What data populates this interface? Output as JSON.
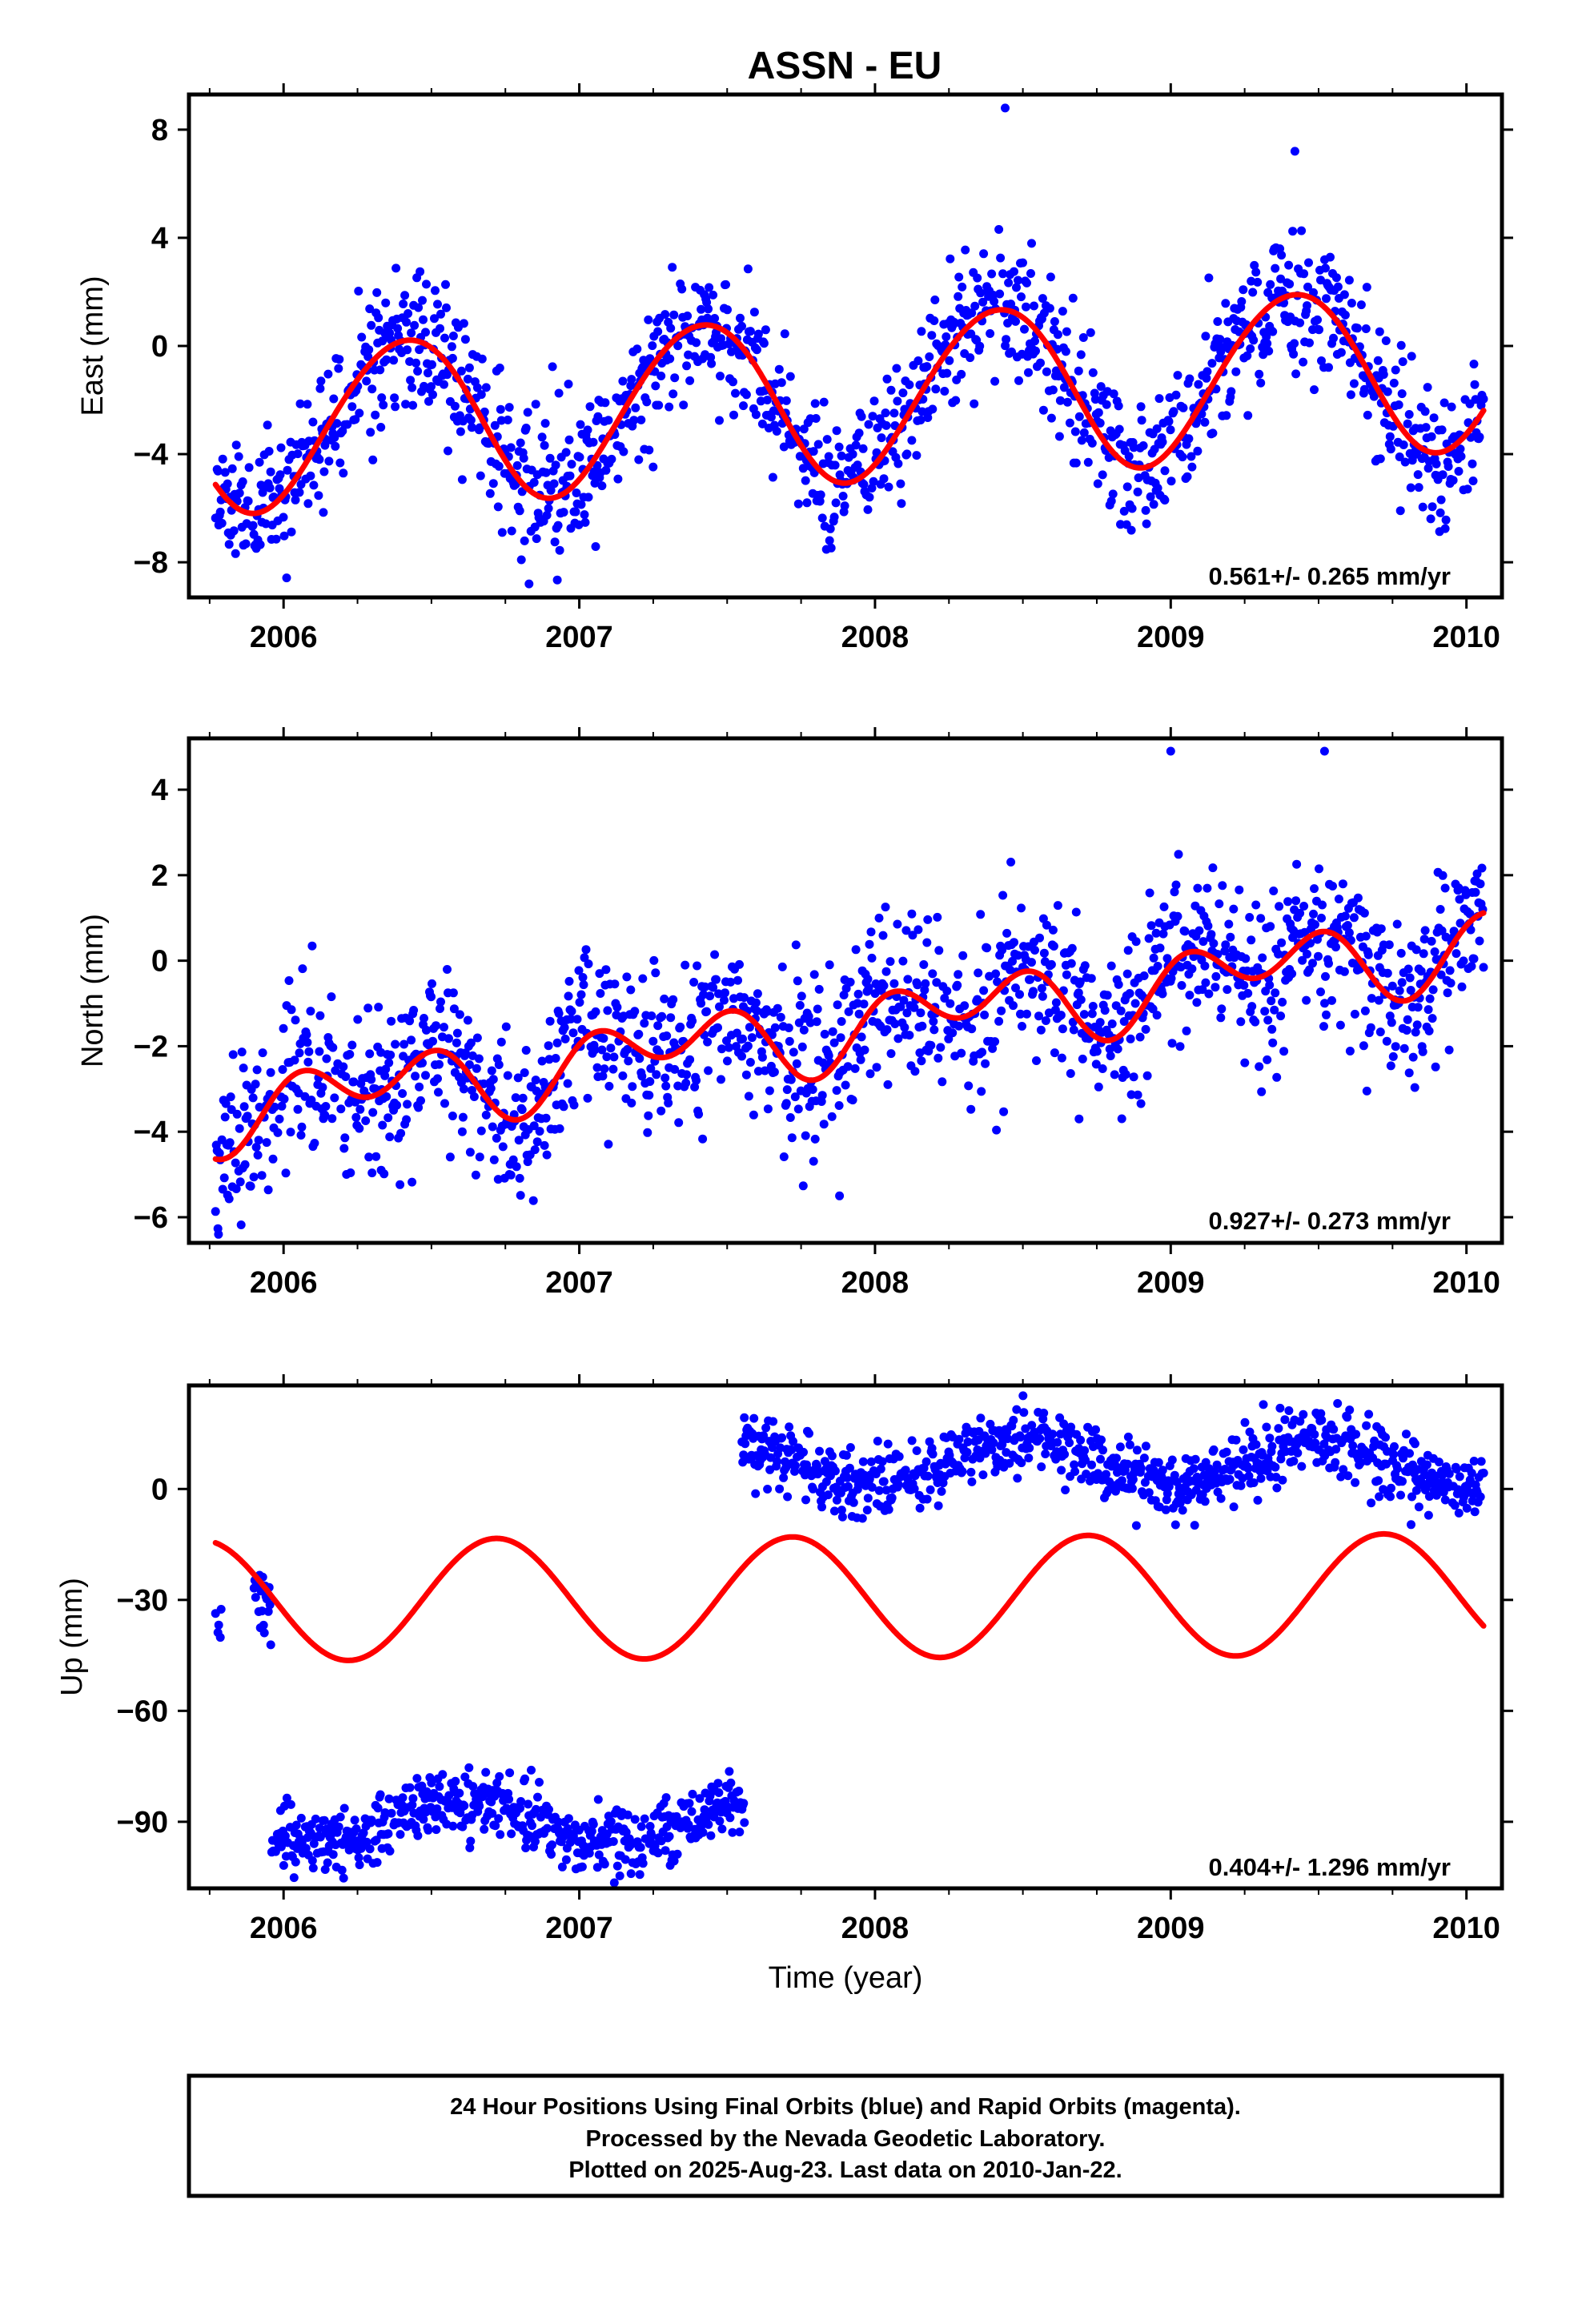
{
  "title": "ASSN - EU",
  "chart_data": [
    {
      "type": "scatter",
      "ylabel": "East (mm)",
      "xlim": [
        2005.68,
        2010.12
      ],
      "ylim": [
        -9.3,
        9.3
      ],
      "xticks": [
        2006,
        2007,
        2008,
        2009,
        2010
      ],
      "yticks": [
        -8,
        -4,
        0,
        4,
        8
      ],
      "rate_label": "0.561+/- 0.265 mm/yr",
      "model": {
        "name": "fit",
        "color": "#ff0000",
        "intercept": -1.85,
        "trend": 0.561,
        "annual_amp": 3.05,
        "annual_peak": 2006.41,
        "semiannual_amp": 0.15,
        "semiannual_peak": 2006.1
      },
      "observations": {
        "color": "#0000ff",
        "scatter": 1.3,
        "start": 2005.77,
        "end": 2010.06,
        "step": 0.0027,
        "seed": 11,
        "outliers": [
          [
            2008.44,
            8.8
          ],
          [
            2009.42,
            7.2
          ],
          [
            2006.83,
            -8.8
          ],
          [
            2008.83,
            -6.6
          ],
          [
            2008.98,
            -5.7
          ],
          [
            2007.77,
            -5.8
          ]
        ]
      }
    },
    {
      "type": "scatter",
      "ylabel": "North (mm)",
      "xlim": [
        2005.68,
        2010.12
      ],
      "ylim": [
        -6.6,
        5.2
      ],
      "xticks": [
        2006,
        2007,
        2008,
        2009,
        2010
      ],
      "yticks": [
        -6,
        -4,
        -2,
        0,
        2,
        4
      ],
      "rate_label": "0.927+/- 0.273 mm/yr",
      "model": {
        "name": "fit",
        "color": "#ff0000",
        "intercept": -1.45,
        "trend": 0.927,
        "annual_amp": 0.5,
        "annual_peak": 2006.3,
        "semiannual_amp": 0.65,
        "semiannual_peak": 2006.04
      },
      "observations": {
        "color": "#0000ff",
        "scatter": 0.95,
        "start": 2005.77,
        "end": 2010.06,
        "step": 0.0027,
        "seed": 23,
        "outliers": [
          [
            2005.78,
            -6.4
          ],
          [
            2007.88,
            -5.5
          ],
          [
            2006.33,
            -4.9
          ],
          [
            2008.69,
            -3.7
          ],
          [
            2009.0,
            4.9
          ],
          [
            2009.52,
            4.9
          ]
        ]
      }
    },
    {
      "type": "scatter",
      "ylabel": "Up (mm)",
      "xlabel": "Time (year)",
      "xlim": [
        2005.68,
        2010.12
      ],
      "ylim": [
        -108,
        28
      ],
      "xticks": [
        2006,
        2007,
        2008,
        2009,
        2010
      ],
      "yticks": [
        -90,
        -60,
        -30,
        0
      ],
      "rate_label": "0.404+/- 1.296 mm/yr",
      "model": {
        "name": "fit",
        "color": "#ff0000",
        "intercept": -29.25,
        "trend": 0.404,
        "annual_amp": 16.4,
        "annual_peak": 2006.72,
        "semiannual_amp": 0,
        "semiannual_peak": 2006.0
      },
      "observation_segments": [
        {
          "start": 2005.77,
          "end": 2005.79,
          "mean": -35,
          "scatter": 2.5
        },
        {
          "start": 2005.9,
          "end": 2005.96,
          "mean": -32,
          "scatter": 5
        },
        {
          "start": 2005.96,
          "end": 2007.56,
          "mean": -90,
          "scatter": 4.2,
          "wave_amp": 6,
          "wave_peak": 2006.62
        },
        {
          "start": 2007.55,
          "end": 2010.06,
          "mean": 7,
          "scatter": 4.5,
          "wave_amp": 6,
          "wave_peak": 2008.5
        }
      ],
      "observations": {
        "color": "#0000ff",
        "seed": 37,
        "step": 0.0027
      }
    }
  ],
  "caption": [
    "24 Hour Positions Using Final Orbits (blue) and Rapid Orbits (magenta).",
    "Processed by the Nevada Geodetic Laboratory.",
    "Plotted on 2025-Aug-23. Last data on 2010-Jan-22."
  ]
}
